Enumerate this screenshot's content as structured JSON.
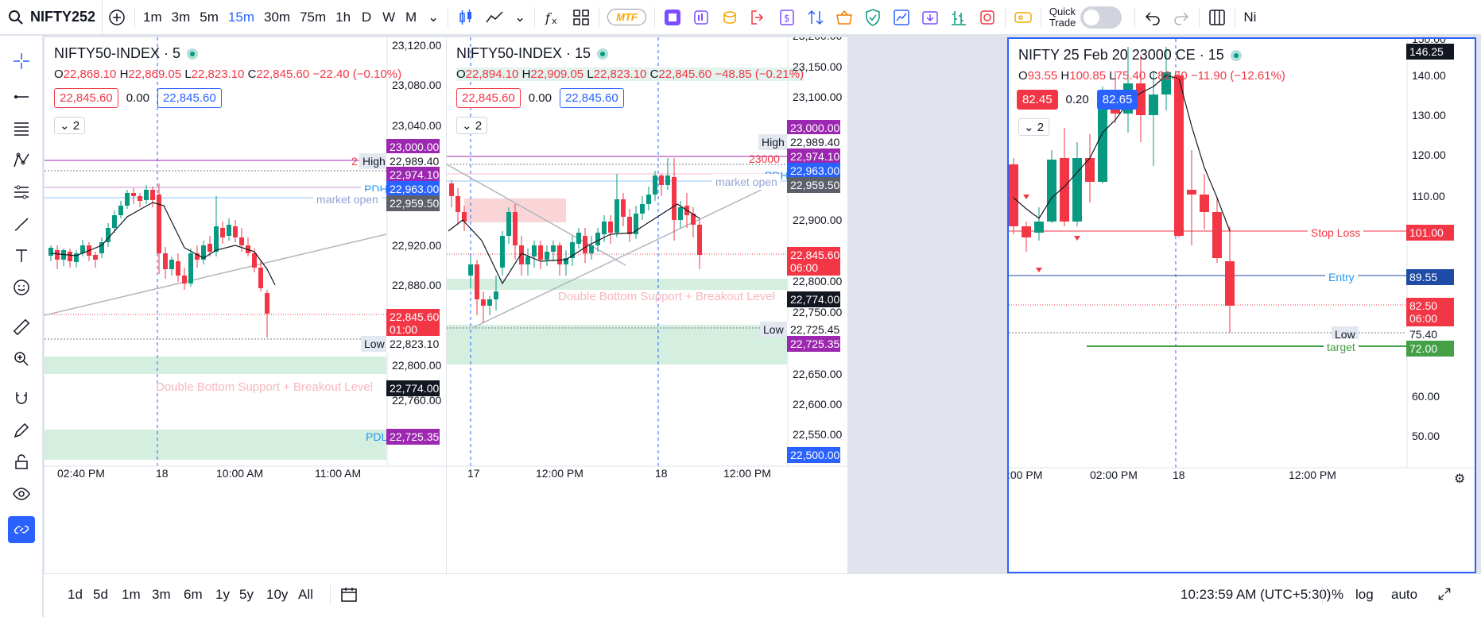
{
  "topbar": {
    "symbol": "NIFTY252",
    "timeframes": [
      "1m",
      "3m",
      "5m",
      "15m",
      "30m",
      "75m",
      "1h",
      "D",
      "W",
      "M"
    ],
    "active_timeframe": "15m",
    "mtf_label": "MTF",
    "quick_trade_label_1": "Quick",
    "quick_trade_label_2": "Trade",
    "overflow_label": "Ni"
  },
  "panes": [
    {
      "title": "NIFTY50-INDEX · 5",
      "open": "22,868.10",
      "high": "22,869.05",
      "low": "22,823.10",
      "close": "22,845.60",
      "change": "−22.40 (−0.10%)",
      "bid": "22,845.60",
      "spread": "0.00",
      "ask": "22,845.60",
      "indicator_count": "2",
      "price_ticks": [
        "23,120.00",
        "23,080.00",
        "23,040.00",
        "22,920.00",
        "22,880.00",
        "22,800.00",
        "22,760.00"
      ],
      "time_ticks": [
        "02:40 PM",
        "18",
        "10:00 AM",
        "11:00 AM"
      ],
      "labels": {
        "p23000": "23,000.00",
        "high_tag": "High",
        "p22989": "22,989.40",
        "p22974": "22,974.10",
        "pdh_tag": "PDH",
        "p22963": "22,963.00",
        "p22959": "22,959.50",
        "market_open": "market open",
        "last": "22,845.60",
        "last_time": "01:00",
        "low_tag": "Low",
        "p22823": "22,823.10",
        "double_bottom": "Double Bottom Support + Breakout Level",
        "p22774": "22,774.00",
        "pdl_tag": "PDL",
        "p22725": "22,725.35",
        "red_cut": "2"
      }
    },
    {
      "title": "NIFTY50-INDEX · 15",
      "open": "22,894.10",
      "high": "22,909.05",
      "low": "22,823.10",
      "close": "22,845.60",
      "change": "−48.85 (−0.21%)",
      "bid": "22,845.60",
      "spread": "0.00",
      "ask": "22,845.60",
      "indicator_count": "2",
      "price_ticks": [
        "23,200.00",
        "23,150.00",
        "23,100.00",
        "22,900.00",
        "22,800.00",
        "22,750.00",
        "22,650.00",
        "22,600.00",
        "22,550.00"
      ],
      "time_ticks": [
        "17",
        "12:00 PM",
        "18",
        "12:00 PM"
      ],
      "labels": {
        "p23000": "23,000.00",
        "high_tag": "High",
        "p22989": "22,989.40",
        "level_23000": "23000",
        "p22974": "22,974.10",
        "pdh_tag": "PDH",
        "p22963": "22,963.00",
        "p22959": "22,959.50",
        "market_open": "market open",
        "last": "22,845.60",
        "last_time": "06:00",
        "double_bottom": "Double Bottom Support + Breakout Level",
        "p22774": "22,774.00",
        "low_tag": "Low",
        "p22725a": "22,725.45",
        "p22725b": "22,725.35",
        "p22500": "22,500.00"
      }
    },
    {
      "title": "NIFTY 25 Feb 20 23000 CE · 15",
      "open": "93.55",
      "high": "100.85",
      "low": "75.40",
      "close": "82.50",
      "change": "−11.90 (−12.61%)",
      "bid": "82.45",
      "spread": "0.20",
      "ask": "82.65",
      "indicator_count": "2",
      "price_ticks": [
        "150.00",
        "140.00",
        "130.00",
        "120.00",
        "110.00",
        "70.00",
        "60.00",
        "50.00"
      ],
      "time_ticks": [
        ":00 PM",
        "02:00 PM",
        "18",
        "12:00 PM"
      ],
      "labels": {
        "top": "146.25",
        "stop_loss": "Stop Loss",
        "p101": "101.00",
        "entry": "Entry",
        "p8955": "89.55",
        "last": "82.50",
        "last_time": "06:00",
        "low_tag": "Low",
        "p7540": "75.40",
        "target": "target",
        "p72": "72.00"
      }
    }
  ],
  "bottombar": {
    "ranges": [
      "1d",
      "5d",
      "1m",
      "3m",
      "6m",
      "1y",
      "5y",
      "10y",
      "All"
    ],
    "clock": "10:23:59 AM (UTC+5:30)",
    "pct": "%",
    "log": "log",
    "auto": "auto"
  },
  "colors": {
    "up": "#089981",
    "down": "#f23645",
    "accent": "#2962ff",
    "purple": "#9c27b0"
  }
}
